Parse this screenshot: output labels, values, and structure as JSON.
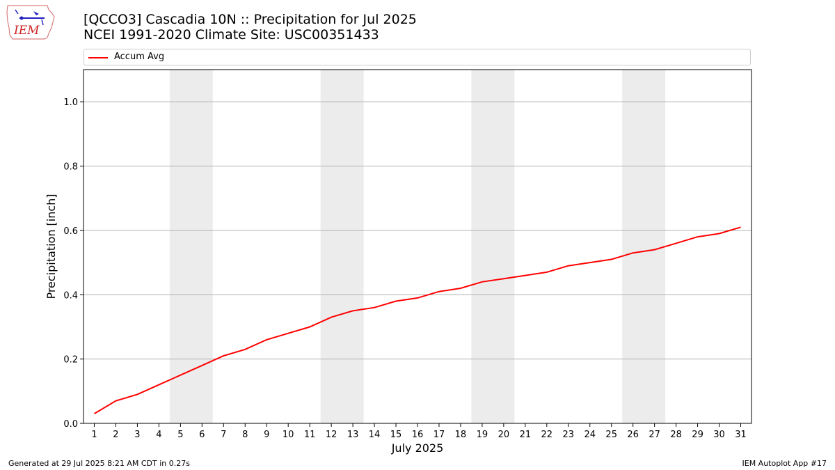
{
  "header": {
    "title_line1": "[QCCO3] Cascadia 10N :: Precipitation for Jul 2025",
    "title_line2": "NCEI 1991-2020 Climate Site: USC00351433"
  },
  "logo": {
    "text": "IEM"
  },
  "footer": {
    "left": "Generated at 29 Jul 2025 8:21 AM CDT in 0.27s",
    "right": "IEM Autoplot App #17"
  },
  "colors": {
    "line": "#ff0000",
    "weekend": "#ececec",
    "grid": "#b0b0b0"
  },
  "chart_data": {
    "type": "line",
    "title": "[QCCO3] Cascadia 10N :: Precipitation for Jul 2025",
    "subtitle": "NCEI 1991-2020 Climate Site: USC00351433",
    "xlabel": "July 2025",
    "ylabel": "Precipitation [inch]",
    "xlim": [
      0.5,
      31.5
    ],
    "ylim": [
      0,
      1.1
    ],
    "yticks": [
      0.0,
      0.2,
      0.4,
      0.6,
      0.8,
      1.0
    ],
    "ytick_labels": [
      "0.0",
      "0.2",
      "0.4",
      "0.6",
      "0.8",
      "1.0"
    ],
    "x": [
      1,
      2,
      3,
      4,
      5,
      6,
      7,
      8,
      9,
      10,
      11,
      12,
      13,
      14,
      15,
      16,
      17,
      18,
      19,
      20,
      21,
      22,
      23,
      24,
      25,
      26,
      27,
      28,
      29,
      30,
      31
    ],
    "weekend_days": [
      [
        5,
        6
      ],
      [
        12,
        13
      ],
      [
        19,
        20
      ],
      [
        26,
        27
      ]
    ],
    "grid": "y",
    "legend_position": "top",
    "series": [
      {
        "name": "Accum Avg",
        "color": "#ff0000",
        "values": [
          0.03,
          0.07,
          0.09,
          0.12,
          0.15,
          0.18,
          0.21,
          0.23,
          0.26,
          0.28,
          0.3,
          0.33,
          0.35,
          0.36,
          0.38,
          0.39,
          0.41,
          0.42,
          0.44,
          0.45,
          0.46,
          0.47,
          0.49,
          0.5,
          0.51,
          0.53,
          0.54,
          0.56,
          0.58,
          0.59,
          0.61
        ]
      }
    ]
  }
}
